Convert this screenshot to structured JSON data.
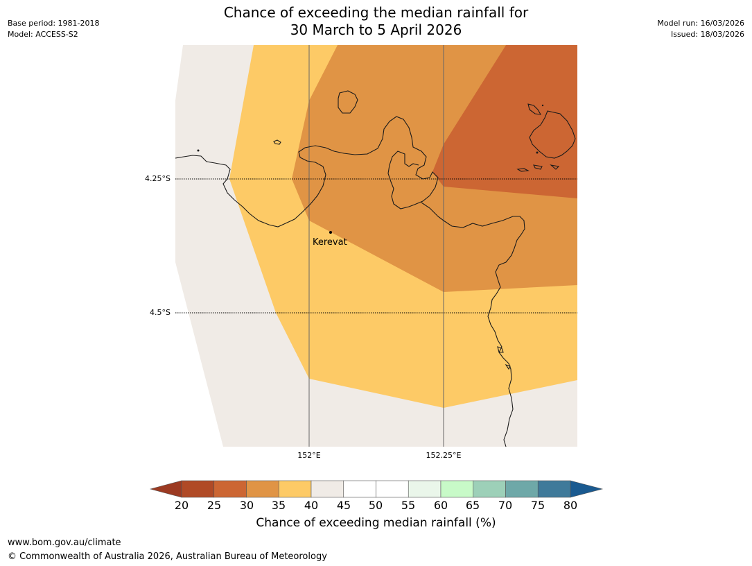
{
  "title": {
    "line1": "Chance of exceeding the median rainfall for",
    "line2": "30 March to 5 April 2026"
  },
  "meta": {
    "base_period": "Base period: 1981-2018",
    "model": "Model: ACCESS-S2",
    "model_run": "Model run: 16/03/2026",
    "issued": "Issued: 18/03/2026"
  },
  "map": {
    "latitude_labels": [
      "4.25°S",
      "4.5°S"
    ],
    "longitude_labels": [
      "152°E",
      "152.25°E"
    ],
    "place_label": "Kerevat",
    "zones": [
      {
        "name": "40-45",
        "color": "#f0ebe6"
      },
      {
        "name": "35-40",
        "color": "#fdca66"
      },
      {
        "name": "30-35",
        "color": "#e09445"
      },
      {
        "name": "25-30",
        "color": "#cc6633"
      }
    ]
  },
  "colorbar": {
    "ticks": [
      "20",
      "25",
      "30",
      "35",
      "40",
      "45",
      "50",
      "55",
      "60",
      "65",
      "70",
      "75",
      "80"
    ],
    "colors": [
      "#b04a26",
      "#cc6633",
      "#e09445",
      "#fdca66",
      "#f0ebe6",
      "#ffffff",
      "#ffffff",
      "#eaf6ea",
      "#c8fac8",
      "#9dd0b8",
      "#6ea8a8",
      "#3f7a9a"
    ],
    "under_color": "#9c3a22",
    "over_color": "#1a5a90",
    "label": "Chance of exceeding median rainfall (%)"
  },
  "footer": {
    "url": "www.bom.gov.au/climate",
    "copyright": "© Commonwealth of Australia 2026, Australian Bureau of Meteorology"
  }
}
